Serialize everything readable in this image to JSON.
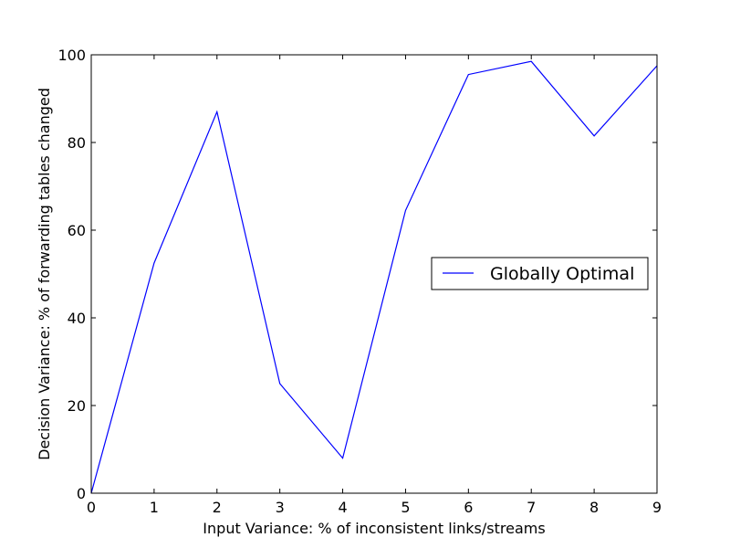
{
  "chart_data": {
    "type": "line",
    "title": "",
    "xlabel": "Input Variance: % of inconsistent links/streams",
    "ylabel": "Decision Variance: % of forwarding tables changed",
    "xlim": [
      0,
      9
    ],
    "ylim": [
      0,
      100
    ],
    "xticks": [
      "0",
      "1",
      "2",
      "3",
      "4",
      "5",
      "6",
      "7",
      "8",
      "9"
    ],
    "yticks": [
      "0",
      "20",
      "40",
      "60",
      "80",
      "100"
    ],
    "grid": false,
    "legend": "center-right",
    "series": [
      {
        "name": "Globally Optimal",
        "color": "#0000ff",
        "x": [
          0,
          1,
          2,
          3,
          4,
          5,
          6,
          7,
          8,
          9
        ],
        "y": [
          0,
          52.5,
          87,
          25,
          8,
          64.5,
          95.5,
          98.5,
          81.5,
          97.5
        ]
      }
    ]
  }
}
